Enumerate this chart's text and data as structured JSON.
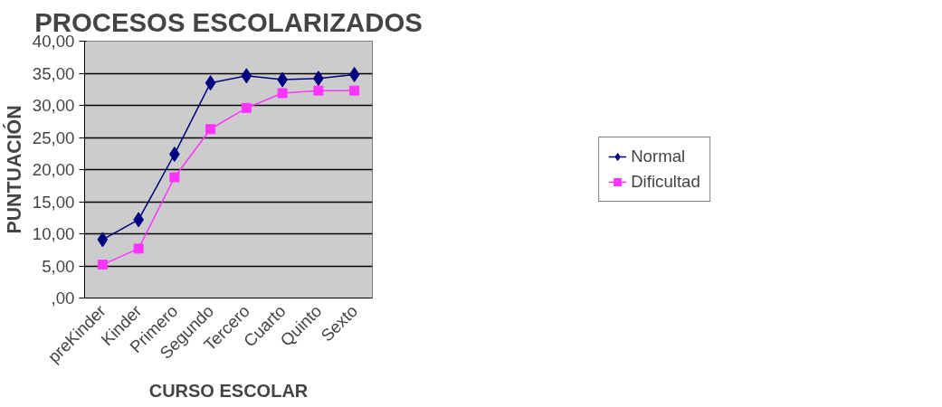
{
  "chart_data": {
    "type": "line",
    "title": "PROCESOS ESCOLARIZADOS",
    "xlabel": "CURSO ESCOLAR",
    "ylabel": "PUNTUACIÓN",
    "categories": [
      "preKinder",
      "Kinder",
      "Primero",
      "Segundo",
      "Tercero",
      "Cuarto",
      "Quinto",
      "Sexto"
    ],
    "series": [
      {
        "name": "Normal",
        "color": "#000080",
        "marker": "diamond",
        "values": [
          9.1,
          12.2,
          22.4,
          33.5,
          34.6,
          34.0,
          34.2,
          34.8
        ]
      },
      {
        "name": "Dificultad",
        "color": "#ff33ff",
        "marker": "square",
        "values": [
          5.2,
          7.7,
          18.8,
          26.3,
          29.6,
          31.9,
          32.3,
          32.3
        ]
      }
    ],
    "ylim": [
      0,
      40
    ],
    "yticks": [
      {
        "value": 0,
        "label": ",00"
      },
      {
        "value": 5,
        "label": "5,00"
      },
      {
        "value": 10,
        "label": "10,00"
      },
      {
        "value": 15,
        "label": "15,00"
      },
      {
        "value": 20,
        "label": "20,00"
      },
      {
        "value": 25,
        "label": "25,00"
      },
      {
        "value": 30,
        "label": "30,00"
      },
      {
        "value": 35,
        "label": "35,00"
      },
      {
        "value": 40,
        "label": "40,00"
      }
    ],
    "grid": "y",
    "legend": "right",
    "line_style": "solid"
  }
}
